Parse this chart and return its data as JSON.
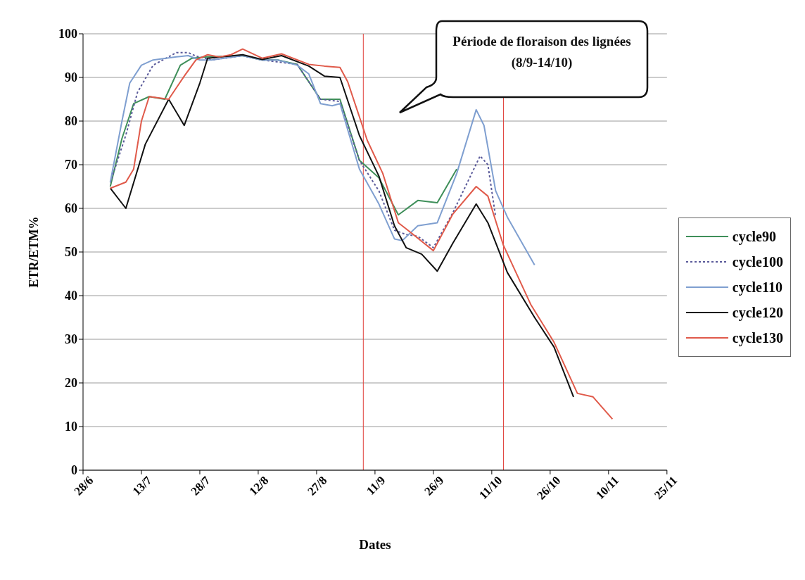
{
  "chart_data": {
    "type": "line",
    "xlabel": "Dates",
    "ylabel": "ETR/ETM%",
    "annotations": [
      "Période de floraison des lignées (8/9-14/10)"
    ],
    "xlim": [
      "--06-28",
      "--11-25"
    ],
    "xticks": [
      {
        "value": "--06-28",
        "label": "28/6"
      },
      {
        "value": "--07-13",
        "label": "13/7"
      },
      {
        "value": "--07-28",
        "label": "28/7"
      },
      {
        "value": "--08-12",
        "label": "12/8"
      },
      {
        "value": "--08-27",
        "label": "27/8"
      },
      {
        "value": "--09-11",
        "label": "11/9"
      },
      {
        "value": "--09-26",
        "label": "26/9"
      },
      {
        "value": "--10-11",
        "label": "11/10"
      },
      {
        "value": "--10-26",
        "label": "26/10"
      },
      {
        "value": "--11-10",
        "label": "10/11"
      },
      {
        "value": "--11-25",
        "label": "25/11"
      }
    ],
    "ylim": [
      0,
      100
    ],
    "yticks": [
      0,
      10,
      20,
      30,
      40,
      50,
      60,
      70,
      80,
      90,
      100
    ],
    "grid": "y",
    "legend": "right",
    "ref_lines": [
      {
        "axis": "x",
        "value": "--09-08",
        "color": "#e0403a"
      },
      {
        "axis": "x",
        "value": "--10-14",
        "color": "#e0403a"
      }
    ],
    "series": [
      {
        "name": "cycle90",
        "color": "#3f8f5a",
        "line_style": "solid",
        "x": [
          "--07-05",
          "--07-08",
          "--07-11",
          "--07-15",
          "--07-19",
          "--07-23",
          "--07-26",
          "--07-30",
          "--08-08",
          "--08-13",
          "--08-17",
          "--08-22",
          "--08-28",
          "--09-02",
          "--09-07",
          "--09-12",
          "--09-17",
          "--09-22",
          "--09-27",
          "--10-02"
        ],
        "values": [
          65,
          76,
          84,
          85.6,
          85,
          92.8,
          94.4,
          94.7,
          95,
          94,
          94,
          93,
          85,
          85,
          71,
          67,
          58.5,
          61.8,
          61.3,
          69
        ]
      },
      {
        "name": "cycle100",
        "color": "#5a5a9a",
        "line_style": "dotted",
        "x": [
          "--07-05",
          "--07-09",
          "--07-12",
          "--07-16",
          "--07-22",
          "--07-25",
          "--07-27",
          "--07-31",
          "--08-08",
          "--08-13",
          "--08-22",
          "--08-28",
          "--09-02",
          "--09-07",
          "--09-12",
          "--09-16",
          "--09-19",
          "--09-22",
          "--09-26",
          "--10-01",
          "--10-08",
          "--10-10",
          "--10-12"
        ],
        "values": [
          65.9,
          76.8,
          86.6,
          92.8,
          95.7,
          95.7,
          94.9,
          94,
          95,
          94,
          93,
          85,
          84.5,
          71,
          64,
          55,
          54,
          53.6,
          51,
          59,
          72,
          70,
          58
        ]
      },
      {
        "name": "cycle110",
        "color": "#7f9fd0",
        "line_style": "solid",
        "x": [
          "--07-05",
          "--07-08",
          "--07-10",
          "--07-13",
          "--07-16",
          "--07-22",
          "--07-25",
          "--07-28",
          "--07-31",
          "--08-08",
          "--08-13",
          "--08-17",
          "--08-22",
          "--08-25",
          "--08-28",
          "--08-31",
          "--09-02",
          "--09-07",
          "--09-12",
          "--09-16",
          "--09-18",
          "--09-22",
          "--09-27",
          "--10-02",
          "--10-07",
          "--10-09",
          "--10-12",
          "--10-15",
          "--10-22"
        ],
        "values": [
          66,
          80,
          88.7,
          92.8,
          94,
          94.7,
          95,
          94,
          94,
          95,
          94,
          94,
          92.8,
          90.8,
          84,
          83.5,
          84,
          69,
          61,
          53,
          52.6,
          56,
          56.7,
          68,
          82.6,
          79,
          64,
          58,
          47
        ]
      },
      {
        "name": "cycle120",
        "color": "#111111",
        "line_style": "solid",
        "x": [
          "--07-05",
          "--07-09",
          "--07-14",
          "--07-20",
          "--07-24",
          "--07-28",
          "--07-30",
          "--08-08",
          "--08-13",
          "--08-18",
          "--08-25",
          "--08-29",
          "--09-02",
          "--09-07",
          "--09-12",
          "--09-16",
          "--09-19",
          "--09-23",
          "--09-27",
          "--10-01",
          "--10-07",
          "--10-10",
          "--10-15",
          "--10-22",
          "--10-27",
          "--11-01"
        ],
        "values": [
          64.6,
          60,
          74.7,
          85,
          79,
          88.7,
          94.4,
          95.2,
          94.1,
          95,
          92.6,
          90.3,
          90,
          76.7,
          67.4,
          56,
          51,
          49.5,
          45.6,
          52,
          61,
          56.7,
          45.3,
          35,
          28.2,
          16.8
        ]
      },
      {
        "name": "cycle130",
        "color": "#e05a4a",
        "line_style": "solid",
        "x": [
          "--07-05",
          "--07-09",
          "--07-11",
          "--07-13",
          "--07-15",
          "--07-20",
          "--07-24",
          "--07-27",
          "--07-30",
          "--08-02",
          "--08-05",
          "--08-08",
          "--08-13",
          "--08-18",
          "--08-25",
          "--08-29",
          "--09-02",
          "--09-04",
          "--09-09",
          "--09-13",
          "--09-17",
          "--09-20",
          "--09-26",
          "--10-01",
          "--10-07",
          "--10-10",
          "--10-14",
          "--10-21",
          "--10-27",
          "--11-02",
          "--11-06",
          "--11-11"
        ],
        "values": [
          64.6,
          66,
          69,
          80,
          85.6,
          85,
          90.3,
          94,
          95.2,
          94.7,
          95.2,
          96.5,
          94.4,
          95.4,
          93,
          92.6,
          92.3,
          89,
          75.6,
          68,
          56.7,
          54.6,
          50.3,
          58.7,
          65,
          62.8,
          51.5,
          38,
          29.3,
          17.6,
          16.8,
          11.7
        ]
      }
    ]
  }
}
